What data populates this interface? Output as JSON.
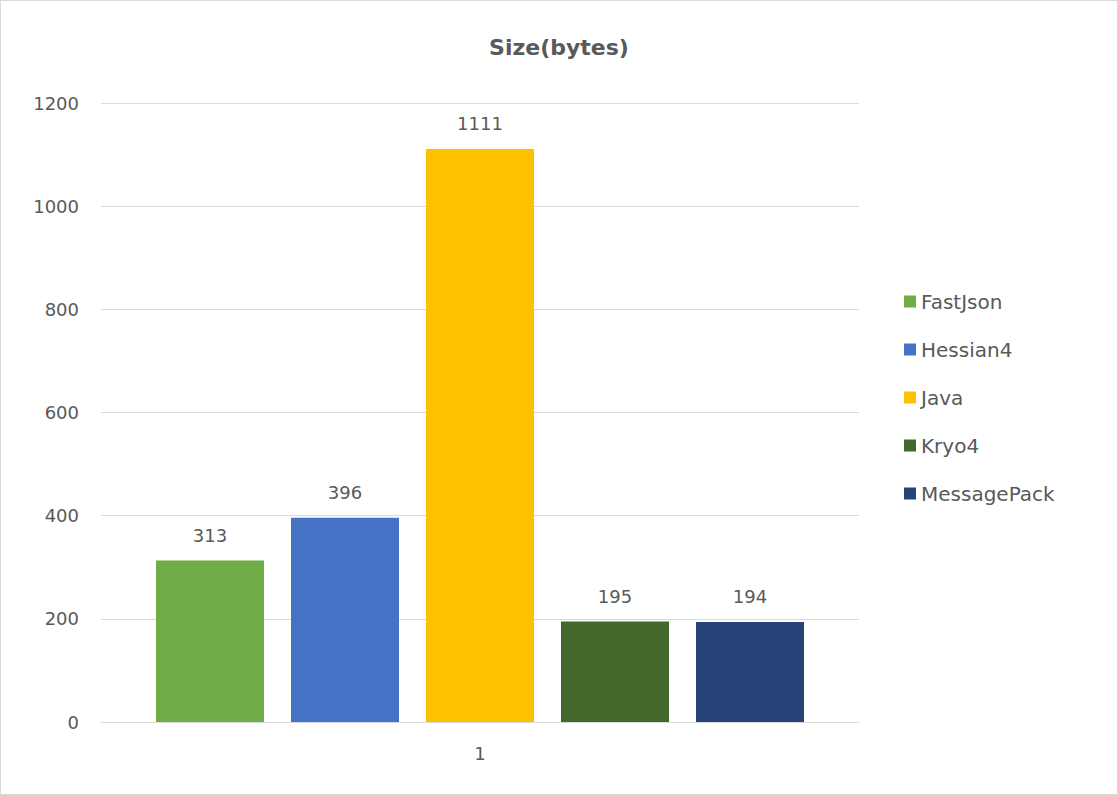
{
  "chart_data": {
    "type": "bar",
    "title": "Size(bytes)",
    "categories": [
      "1"
    ],
    "series": [
      {
        "name": "FastJson",
        "color": "#70ad47",
        "values": [
          313
        ]
      },
      {
        "name": "Hessian4",
        "color": "#4472c4",
        "values": [
          396
        ]
      },
      {
        "name": "Java",
        "color": "#ffc000",
        "values": [
          1111
        ]
      },
      {
        "name": "Kryo4",
        "color": "#43682b",
        "values": [
          195
        ]
      },
      {
        "name": "MessagePack",
        "color": "#264478",
        "values": [
          194
        ]
      }
    ],
    "ylim": [
      0,
      1200
    ],
    "yticks": [
      0,
      200,
      400,
      600,
      800,
      1000,
      1200
    ],
    "grid": true,
    "legend": "right",
    "data_labels": true
  }
}
